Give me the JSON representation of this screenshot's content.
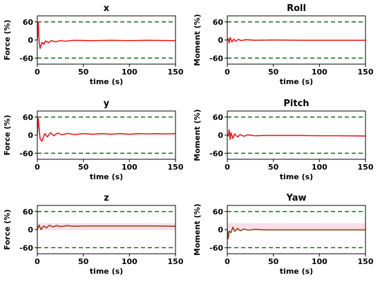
{
  "chart_data": [
    {
      "type": "line",
      "title": "x",
      "xlabel": "time (s)",
      "ylabel": "Force (%)",
      "xlim": [
        0,
        150
      ],
      "ylim": [
        -80,
        80
      ],
      "x_ticks": [
        "0",
        "50",
        "100",
        "150"
      ],
      "y_ticks": [
        "60",
        "0",
        "-60"
      ],
      "reference_lines": [
        60,
        -60
      ],
      "limit_color": "#1e6b1e",
      "series": [
        {
          "color": "#e8191b",
          "shaded": false,
          "response": {
            "x": [
              0,
              1,
              2,
              3,
              5,
              7,
              9,
              12,
              15,
              20,
              25,
              30,
              40,
              60,
              80,
              100,
              120,
              150
            ],
            "y": [
              0,
              60,
              -5,
              -28,
              -8,
              -14,
              -3,
              -9,
              -2,
              -6,
              -2,
              -4,
              -1,
              -2,
              -1,
              -2,
              -1,
              -2
            ]
          }
        }
      ]
    },
    {
      "type": "line",
      "title": "Roll",
      "xlabel": "time (s)",
      "ylabel": "Moment (%)",
      "xlim": [
        0,
        150
      ],
      "ylim": [
        -80,
        80
      ],
      "x_ticks": [
        "0",
        "50",
        "100",
        "150"
      ],
      "y_ticks": [
        "60",
        "0",
        "-60"
      ],
      "reference_lines": [
        60,
        -60
      ],
      "limit_color": "#1e6b1e",
      "series": [
        {
          "color": "#e8191b",
          "shaded": false,
          "response": {
            "x": [
              0,
              1,
              2,
              3,
              5,
              7,
              9,
              12,
              15,
              20,
              30,
              50,
              80,
              100,
              150
            ],
            "y": [
              0,
              4,
              -10,
              8,
              -6,
              3,
              -4,
              2,
              -2,
              1,
              -1,
              0,
              -1,
              -1,
              -1
            ]
          }
        }
      ]
    },
    {
      "type": "line",
      "title": "y",
      "xlabel": "time (s)",
      "ylabel": "Force (%)",
      "xlim": [
        0,
        150
      ],
      "ylim": [
        -80,
        80
      ],
      "x_ticks": [
        "0",
        "50",
        "100",
        "150"
      ],
      "y_ticks": [
        "60",
        "0",
        "-60"
      ],
      "reference_lines": [
        60,
        -60
      ],
      "limit_color": "#1e6b1e",
      "series": [
        {
          "color": "#e8191b",
          "shaded": false,
          "response": {
            "x": [
              0,
              1,
              3,
              5,
              8,
              11,
              14,
              18,
              22,
              27,
              33,
              40,
              50,
              60,
              70,
              80,
              90,
              100,
              110,
              120,
              130,
              140,
              150
            ],
            "y": [
              0,
              55,
              -12,
              -20,
              5,
              -6,
              8,
              -2,
              7,
              1,
              6,
              2,
              5,
              3,
              5,
              3,
              5,
              3,
              5,
              4,
              5,
              4,
              5
            ]
          }
        }
      ]
    },
    {
      "type": "line",
      "title": "Pitch",
      "xlabel": "time (s)",
      "ylabel": "Moment (%)",
      "xlim": [
        0,
        150
      ],
      "ylim": [
        -80,
        80
      ],
      "x_ticks": [
        "0",
        "50",
        "100",
        "150"
      ],
      "y_ticks": [
        "60",
        "0",
        "-60"
      ],
      "reference_lines": [
        60,
        -60
      ],
      "limit_color": "#1e6b1e",
      "series": [
        {
          "color": "#e8191b",
          "shaded": false,
          "response": {
            "x": [
              0,
              1,
              2,
              3,
              4,
              6,
              8,
              11,
              14,
              18,
              22,
              30,
              40,
              60,
              80,
              100,
              120,
              150
            ],
            "y": [
              0,
              -3,
              18,
              -14,
              8,
              -10,
              4,
              -6,
              2,
              -4,
              1,
              -2,
              -1,
              -1,
              -1,
              -2,
              -2,
              -3
            ]
          }
        }
      ]
    },
    {
      "type": "line",
      "title": "z",
      "xlabel": "time (s)",
      "ylabel": "Force (%)",
      "xlim": [
        0,
        150
      ],
      "ylim": [
        -80,
        80
      ],
      "x_ticks": [
        "0",
        "50",
        "100",
        "150"
      ],
      "y_ticks": [
        "60",
        "0",
        "-60"
      ],
      "reference_lines": [
        60,
        -60
      ],
      "limit_color": "#1e6b1e",
      "series": [
        {
          "color": "#8b4513",
          "shaded": true,
          "shade_color": "#f7d4e4",
          "response": {
            "x": [
              0,
              2,
              4,
              7,
              10,
              13,
              17,
              21,
              26,
              32,
              40,
              50,
              70,
              90,
              110,
              130,
              150
            ],
            "y": [
              0,
              15,
              0,
              12,
              6,
              14,
              9,
              13,
              10,
              13,
              11,
              12,
              12,
              12,
              12,
              12,
              11
            ]
          }
        }
      ]
    },
    {
      "type": "line",
      "title": "Yaw",
      "xlabel": "time (s)",
      "ylabel": "Moment (%)",
      "xlim": [
        0,
        150
      ],
      "ylim": [
        -80,
        80
      ],
      "x_ticks": [
        "0",
        "50",
        "100",
        "150"
      ],
      "y_ticks": [
        "60",
        "0",
        "-60"
      ],
      "reference_lines": [
        60,
        -60
      ],
      "limit_color": "#1e6b1e",
      "series": [
        {
          "color": "#8b4513",
          "shaded": true,
          "shade_color": "#f7d4e4",
          "response": {
            "x": [
              0,
              1,
              2,
              4,
              6,
              8,
              11,
              14,
              18,
              23,
              30,
              40,
              60,
              80,
              100,
              120,
              150
            ],
            "y": [
              0,
              -30,
              -5,
              -10,
              8,
              -6,
              4,
              -4,
              2,
              -2,
              1,
              -1,
              -1,
              -1,
              -1,
              -1,
              -1
            ]
          }
        }
      ]
    }
  ]
}
